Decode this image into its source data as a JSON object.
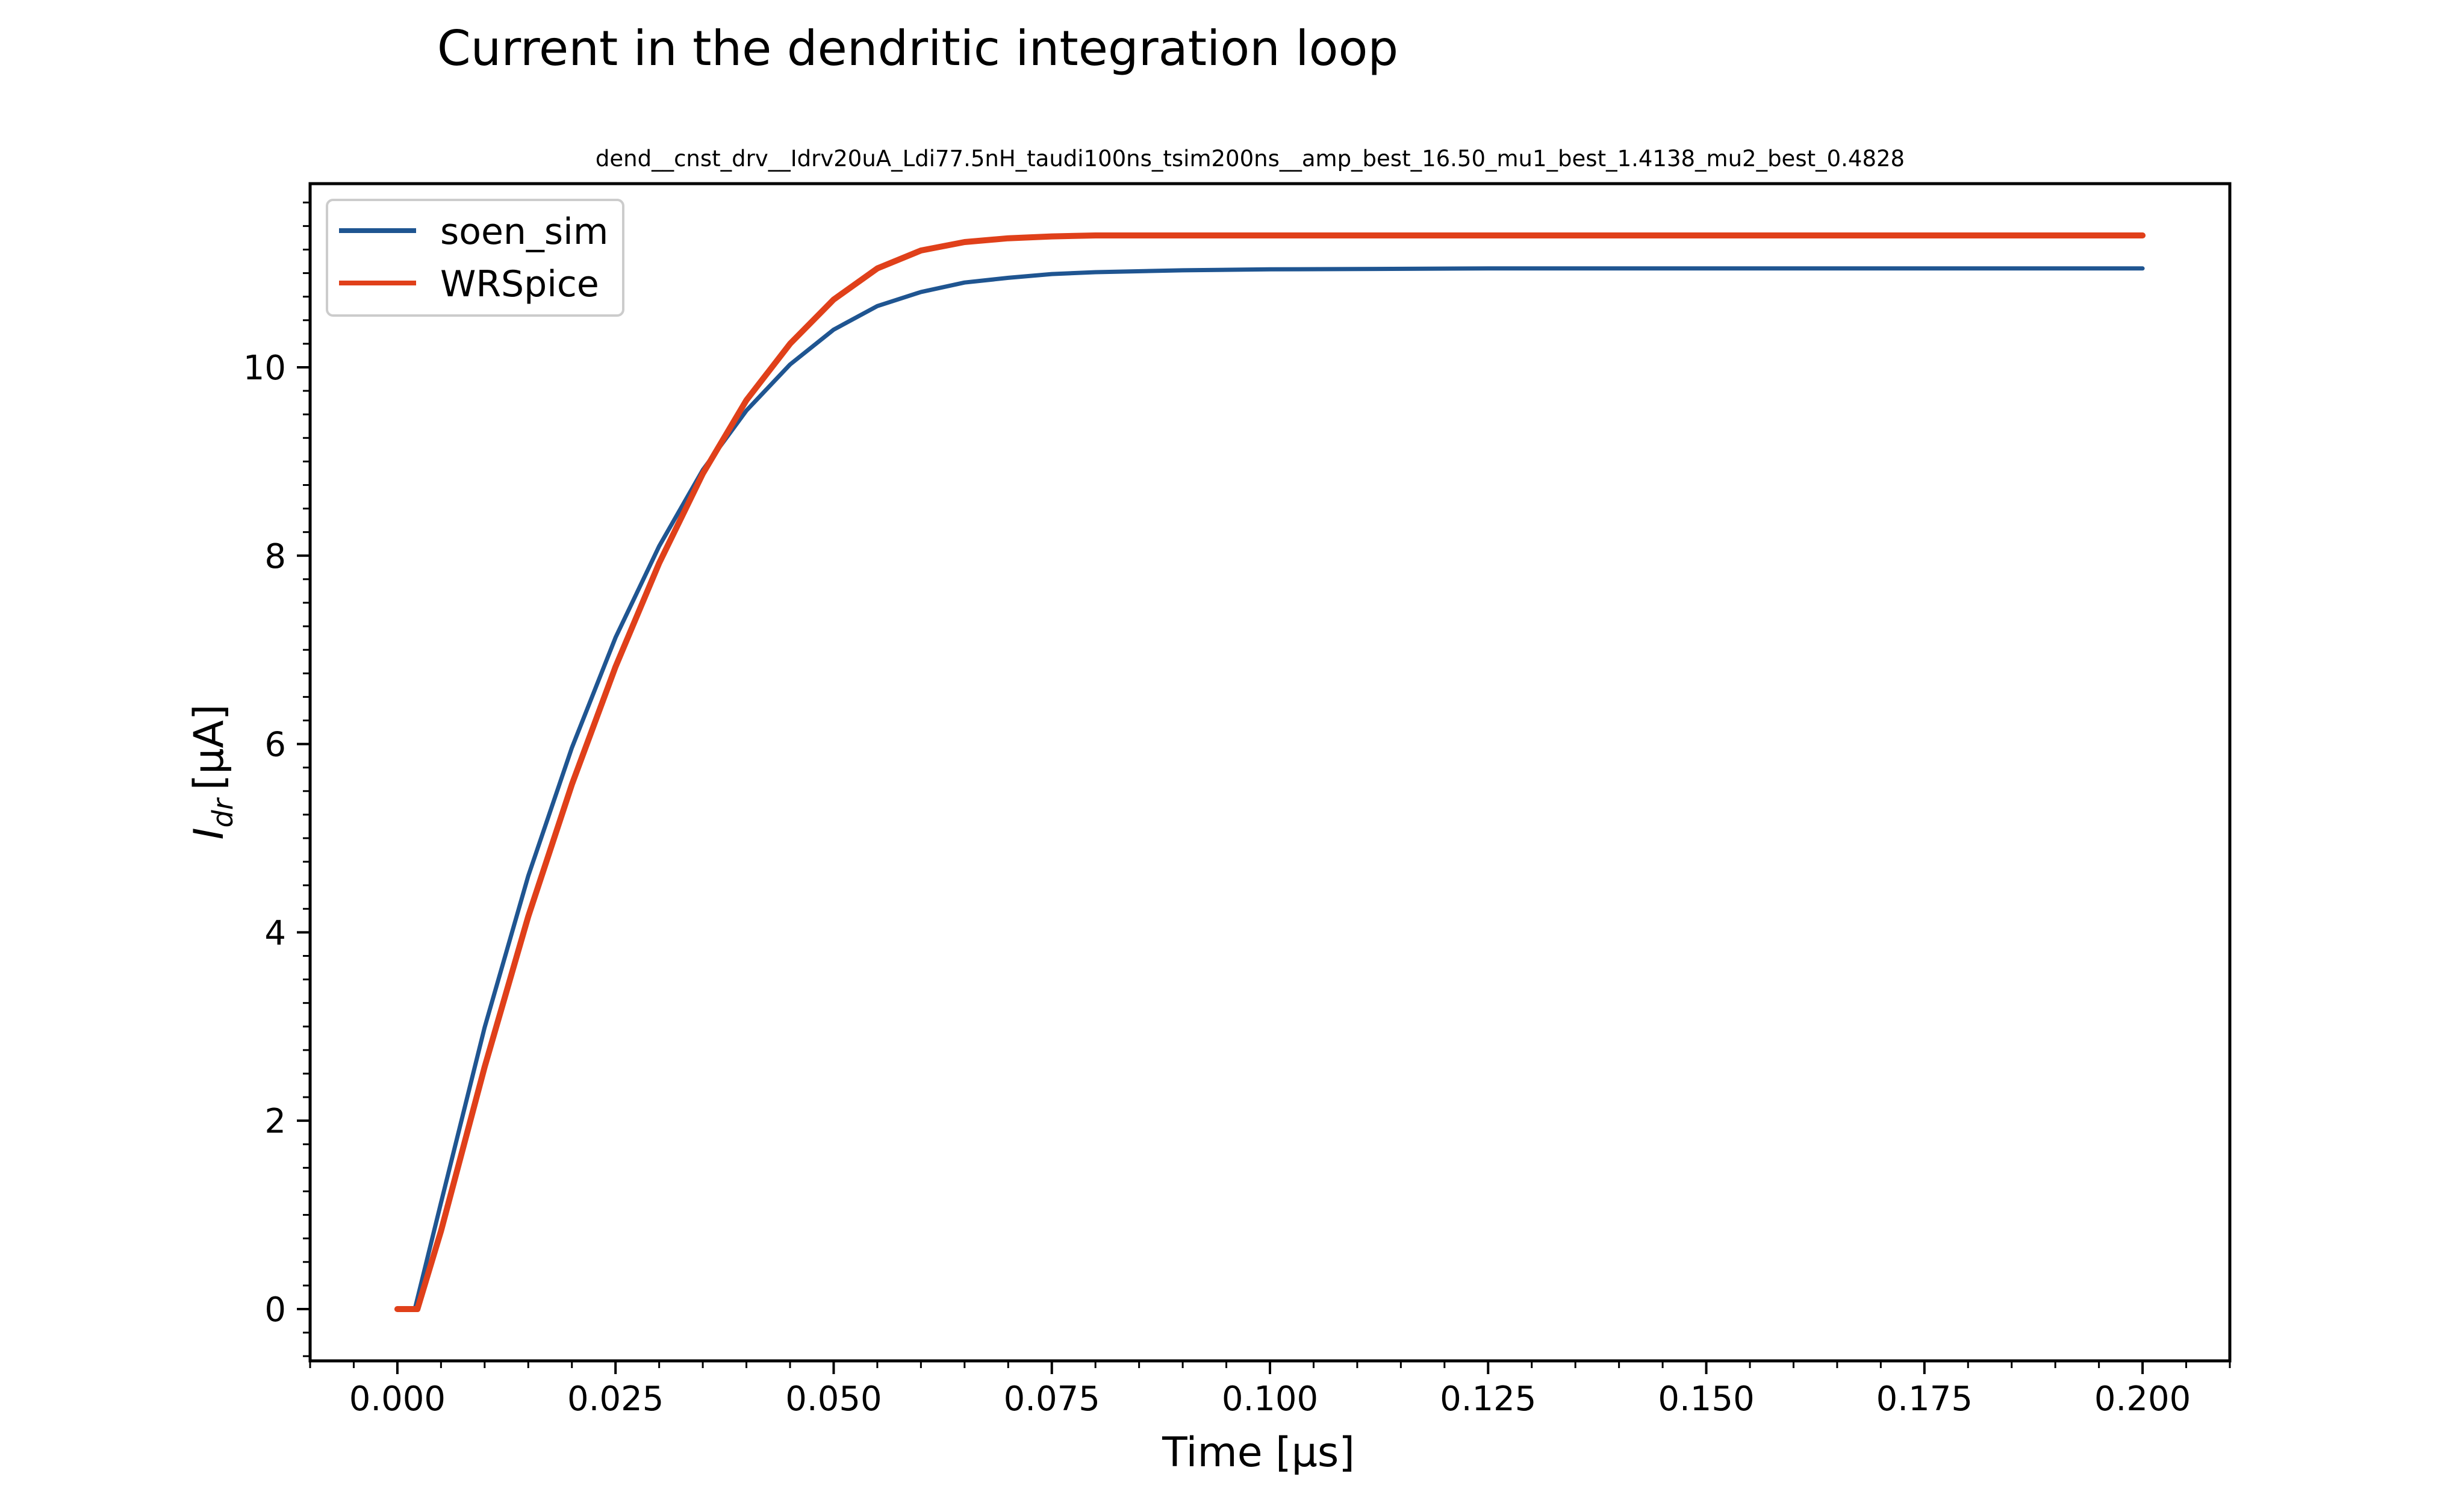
{
  "chart_data": {
    "type": "line",
    "title": "Current in the dendritic integration loop",
    "subtitle": "dend__cnst_drv__Idrv20uA_Ldi77.5nH_taudi100ns_tsim200ns__amp_best_16.50_mu1_best_1.4138_mu2_best_0.4828",
    "xlabel": "Time [μs]",
    "ylabel_main": "I",
    "ylabel_sub": "dr",
    "ylabel_unit": "[μA]",
    "xlim": [
      -0.01,
      0.21
    ],
    "ylim": [
      -0.55,
      11.95
    ],
    "xticks": [
      0.0,
      0.025,
      0.05,
      0.075,
      0.1,
      0.125,
      0.15,
      0.175,
      0.2
    ],
    "xtick_labels": [
      "0.000",
      "0.025",
      "0.050",
      "0.075",
      "0.100",
      "0.125",
      "0.150",
      "0.175",
      "0.200"
    ],
    "yticks": [
      0,
      2,
      4,
      6,
      8,
      10
    ],
    "ytick_labels": [
      "0",
      "2",
      "4",
      "6",
      "8",
      "10"
    ],
    "grid": false,
    "legend_position": "top-left",
    "series": [
      {
        "name": "soen_sim",
        "color": "#1f5591",
        "points": [
          [
            0.0,
            0.0
          ],
          [
            0.002,
            0.0
          ],
          [
            0.005,
            1.13
          ],
          [
            0.01,
            2.99
          ],
          [
            0.015,
            4.6
          ],
          [
            0.02,
            5.96
          ],
          [
            0.025,
            7.13
          ],
          [
            0.03,
            8.1
          ],
          [
            0.035,
            8.91
          ],
          [
            0.04,
            9.54
          ],
          [
            0.045,
            10.03
          ],
          [
            0.05,
            10.4
          ],
          [
            0.055,
            10.65
          ],
          [
            0.06,
            10.8
          ],
          [
            0.065,
            10.9
          ],
          [
            0.07,
            10.95
          ],
          [
            0.075,
            10.99
          ],
          [
            0.08,
            11.01
          ],
          [
            0.09,
            11.03
          ],
          [
            0.1,
            11.04
          ],
          [
            0.125,
            11.05
          ],
          [
            0.15,
            11.05
          ],
          [
            0.175,
            11.05
          ],
          [
            0.2,
            11.05
          ]
        ]
      },
      {
        "name": "WRSpice",
        "color": "#e0401a",
        "points": [
          [
            0.0,
            0.0
          ],
          [
            0.0023,
            0.0
          ],
          [
            0.005,
            0.83
          ],
          [
            0.01,
            2.57
          ],
          [
            0.015,
            4.17
          ],
          [
            0.02,
            5.57
          ],
          [
            0.025,
            6.82
          ],
          [
            0.03,
            7.92
          ],
          [
            0.035,
            8.87
          ],
          [
            0.04,
            9.65
          ],
          [
            0.045,
            10.25
          ],
          [
            0.05,
            10.72
          ],
          [
            0.055,
            11.05
          ],
          [
            0.06,
            11.24
          ],
          [
            0.065,
            11.33
          ],
          [
            0.07,
            11.37
          ],
          [
            0.075,
            11.39
          ],
          [
            0.08,
            11.4
          ],
          [
            0.09,
            11.4
          ],
          [
            0.1,
            11.4
          ],
          [
            0.125,
            11.4
          ],
          [
            0.15,
            11.4
          ],
          [
            0.175,
            11.4
          ],
          [
            0.2,
            11.4
          ]
        ]
      }
    ]
  }
}
